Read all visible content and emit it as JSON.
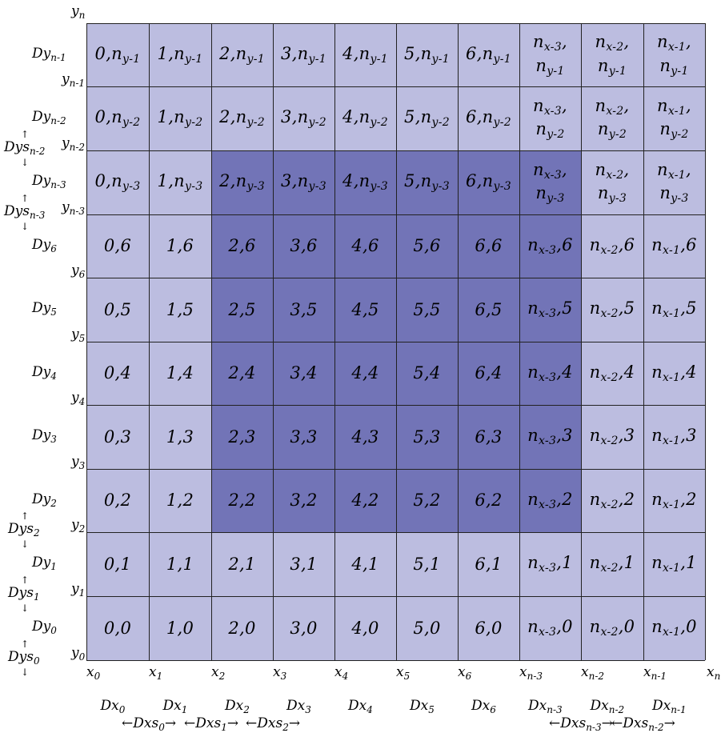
{
  "grid": {
    "rows": [
      {
        "y_label": "Dy",
        "y_sub": "n-1",
        "cells": [
          [
            "0,n",
            "y-1"
          ],
          [
            "1,n",
            "y-1"
          ],
          [
            "2,n",
            "y-1"
          ],
          [
            "3,n",
            "y-1"
          ],
          [
            "4,n",
            "y-1"
          ],
          [
            "5,n",
            "y-1"
          ],
          [
            "6,n",
            "y-1"
          ],
          [
            "n",
            "x-3",
            ",",
            "n",
            "y-1"
          ],
          [
            "n",
            "x-2",
            ",",
            "n",
            "y-1"
          ],
          [
            "n",
            "x-1",
            ",",
            "n",
            "y-1"
          ]
        ]
      },
      {
        "y_label": "Dy",
        "y_sub": "n-2",
        "cells": [
          [
            "0,n",
            "y-2"
          ],
          [
            "1,n",
            "y-2"
          ],
          [
            "2,n",
            "y-2"
          ],
          [
            "3,n",
            "y-2"
          ],
          [
            "4,n",
            "y-2"
          ],
          [
            "5,n",
            "y-2"
          ],
          [
            "6,n",
            "y-2"
          ],
          [
            "n",
            "x-3",
            ",",
            "n",
            "y-2"
          ],
          [
            "n",
            "x-2",
            ",",
            "n",
            "y-2"
          ],
          [
            "n",
            "x-1",
            ",",
            "n",
            "y-2"
          ]
        ]
      },
      {
        "y_label": "Dy",
        "y_sub": "n-3",
        "cells": [
          [
            "0,n",
            "y-3"
          ],
          [
            "1,n",
            "y-3"
          ],
          [
            "2,n",
            "y-3"
          ],
          [
            "3,n",
            "y-3"
          ],
          [
            "4,n",
            "y-3"
          ],
          [
            "5,n",
            "y-3"
          ],
          [
            "6,n",
            "y-3"
          ],
          [
            "n",
            "x-3",
            ",",
            "n",
            "y-3"
          ],
          [
            "n",
            "x-2",
            ",",
            "n",
            "y-3"
          ],
          [
            "n",
            "x-1",
            ",",
            "n",
            "y-3"
          ]
        ]
      },
      {
        "y_label": "Dy",
        "y_sub": "6",
        "cells": [
          [
            "0,6"
          ],
          [
            "1,6"
          ],
          [
            "2,6"
          ],
          [
            "3,6"
          ],
          [
            "4,6"
          ],
          [
            "5,6"
          ],
          [
            "6,6"
          ],
          [
            "n",
            "x-3",
            ",6"
          ],
          [
            "n",
            "x-2",
            ",6"
          ],
          [
            "n",
            "x-1",
            ",6"
          ]
        ]
      },
      {
        "y_label": "Dy",
        "y_sub": "5",
        "cells": [
          [
            "0,5"
          ],
          [
            "1,5"
          ],
          [
            "2,5"
          ],
          [
            "3,5"
          ],
          [
            "4,5"
          ],
          [
            "5,5"
          ],
          [
            "6,5"
          ],
          [
            "n",
            "x-3",
            ",5"
          ],
          [
            "n",
            "x-2",
            ",5"
          ],
          [
            "n",
            "x-1",
            ",5"
          ]
        ]
      },
      {
        "y_label": "Dy",
        "y_sub": "4",
        "cells": [
          [
            "0,4"
          ],
          [
            "1,4"
          ],
          [
            "2,4"
          ],
          [
            "3,4"
          ],
          [
            "4,4"
          ],
          [
            "5,4"
          ],
          [
            "6,4"
          ],
          [
            "n",
            "x-3",
            ",4"
          ],
          [
            "n",
            "x-2",
            ",4"
          ],
          [
            "n",
            "x-1",
            ",4"
          ]
        ]
      },
      {
        "y_label": "Dy",
        "y_sub": "3",
        "cells": [
          [
            "0,3"
          ],
          [
            "1,3"
          ],
          [
            "2,3"
          ],
          [
            "3,3"
          ],
          [
            "4,3"
          ],
          [
            "5,3"
          ],
          [
            "6,3"
          ],
          [
            "n",
            "x-3",
            ",3"
          ],
          [
            "n",
            "x-2",
            ",3"
          ],
          [
            "n",
            "x-1",
            ",3"
          ]
        ]
      },
      {
        "y_label": "Dy",
        "y_sub": "2",
        "cells": [
          [
            "0,2"
          ],
          [
            "1,2"
          ],
          [
            "2,2"
          ],
          [
            "3,2"
          ],
          [
            "4,2"
          ],
          [
            "5,2"
          ],
          [
            "6,2"
          ],
          [
            "n",
            "x-3",
            ",2"
          ],
          [
            "n",
            "x-2",
            ",2"
          ],
          [
            "n",
            "x-1",
            ",2"
          ]
        ]
      },
      {
        "y_label": "Dy",
        "y_sub": "1",
        "cells": [
          [
            "0,1"
          ],
          [
            "1,1"
          ],
          [
            "2,1"
          ],
          [
            "3,1"
          ],
          [
            "4,1"
          ],
          [
            "5,1"
          ],
          [
            "6,1"
          ],
          [
            "n",
            "x-3",
            ",1"
          ],
          [
            "n",
            "x-2",
            ",1"
          ],
          [
            "n",
            "x-1",
            ",1"
          ]
        ]
      },
      {
        "y_label": "Dy",
        "y_sub": "0",
        "cells": [
          [
            "0,0"
          ],
          [
            "1,0"
          ],
          [
            "2,0"
          ],
          [
            "3,0"
          ],
          [
            "4,0"
          ],
          [
            "5,0"
          ],
          [
            "6,0"
          ],
          [
            "n",
            "x-3",
            ",0"
          ],
          [
            "n",
            "x-2",
            ",0"
          ],
          [
            "n",
            "x-1",
            ",0"
          ]
        ]
      }
    ],
    "highlight": {
      "rows": [
        2,
        3,
        4,
        5,
        6,
        7
      ],
      "cols": [
        2,
        3,
        4,
        5,
        6,
        7
      ]
    },
    "colors": {
      "light": "#bcbde0",
      "dark": "#7274b7",
      "line": "#222222"
    }
  },
  "y_boundaries": [
    {
      "base": "y",
      "sub": "n"
    },
    {
      "base": "y",
      "sub": "n-1"
    },
    {
      "base": "y",
      "sub": "n-2"
    },
    {
      "base": "y",
      "sub": "n-3"
    },
    {
      "base": "y",
      "sub": "6"
    },
    {
      "base": "y",
      "sub": "5"
    },
    {
      "base": "y",
      "sub": "4"
    },
    {
      "base": "y",
      "sub": "3"
    },
    {
      "base": "y",
      "sub": "2"
    },
    {
      "base": "y",
      "sub": "1"
    },
    {
      "base": "y",
      "sub": "0"
    }
  ],
  "x_boundaries": [
    {
      "base": "x",
      "sub": "0"
    },
    {
      "base": "x",
      "sub": "1"
    },
    {
      "base": "x",
      "sub": "2"
    },
    {
      "base": "x",
      "sub": "3"
    },
    {
      "base": "x",
      "sub": "4"
    },
    {
      "base": "x",
      "sub": "5"
    },
    {
      "base": "x",
      "sub": "6"
    },
    {
      "base": "x",
      "sub": "n-3"
    },
    {
      "base": "x",
      "sub": "n-2"
    },
    {
      "base": "x",
      "sub": "n-1"
    },
    {
      "base": "x",
      "sub": "n"
    }
  ],
  "dx_labels": [
    {
      "base": "Dx",
      "sub": "0"
    },
    {
      "base": "Dx",
      "sub": "1"
    },
    {
      "base": "Dx",
      "sub": "2"
    },
    {
      "base": "Dx",
      "sub": "3"
    },
    {
      "base": "Dx",
      "sub": "4"
    },
    {
      "base": "Dx",
      "sub": "5"
    },
    {
      "base": "Dx",
      "sub": "6"
    },
    {
      "base": "Dx",
      "sub": "n-3"
    },
    {
      "base": "Dx",
      "sub": "n-2"
    },
    {
      "base": "Dx",
      "sub": "n-1"
    }
  ],
  "dxs_labels": [
    {
      "text": "←Dxs",
      "sub": "0",
      "tail": "→",
      "col": 0
    },
    {
      "text": "←Dxs",
      "sub": "1",
      "tail": "→",
      "col": 1
    },
    {
      "text": "←Dxs",
      "sub": "2",
      "tail": "→",
      "col": 2
    },
    {
      "text": "←Dxs",
      "sub": "n-3",
      "tail": "→",
      "col": 7
    },
    {
      "text": "←Dxs",
      "sub": "n-2",
      "tail": "→",
      "col": 8
    }
  ],
  "dys_labels": [
    {
      "base": "Dys",
      "sub": "n-2",
      "boundary": 2
    },
    {
      "base": "Dys",
      "sub": "n-3",
      "boundary": 3
    },
    {
      "base": "Dys",
      "sub": "2",
      "boundary": 8
    },
    {
      "base": "Dys",
      "sub": "1",
      "boundary": 9
    },
    {
      "base": "Dys",
      "sub": "0",
      "boundary": 10
    }
  ]
}
